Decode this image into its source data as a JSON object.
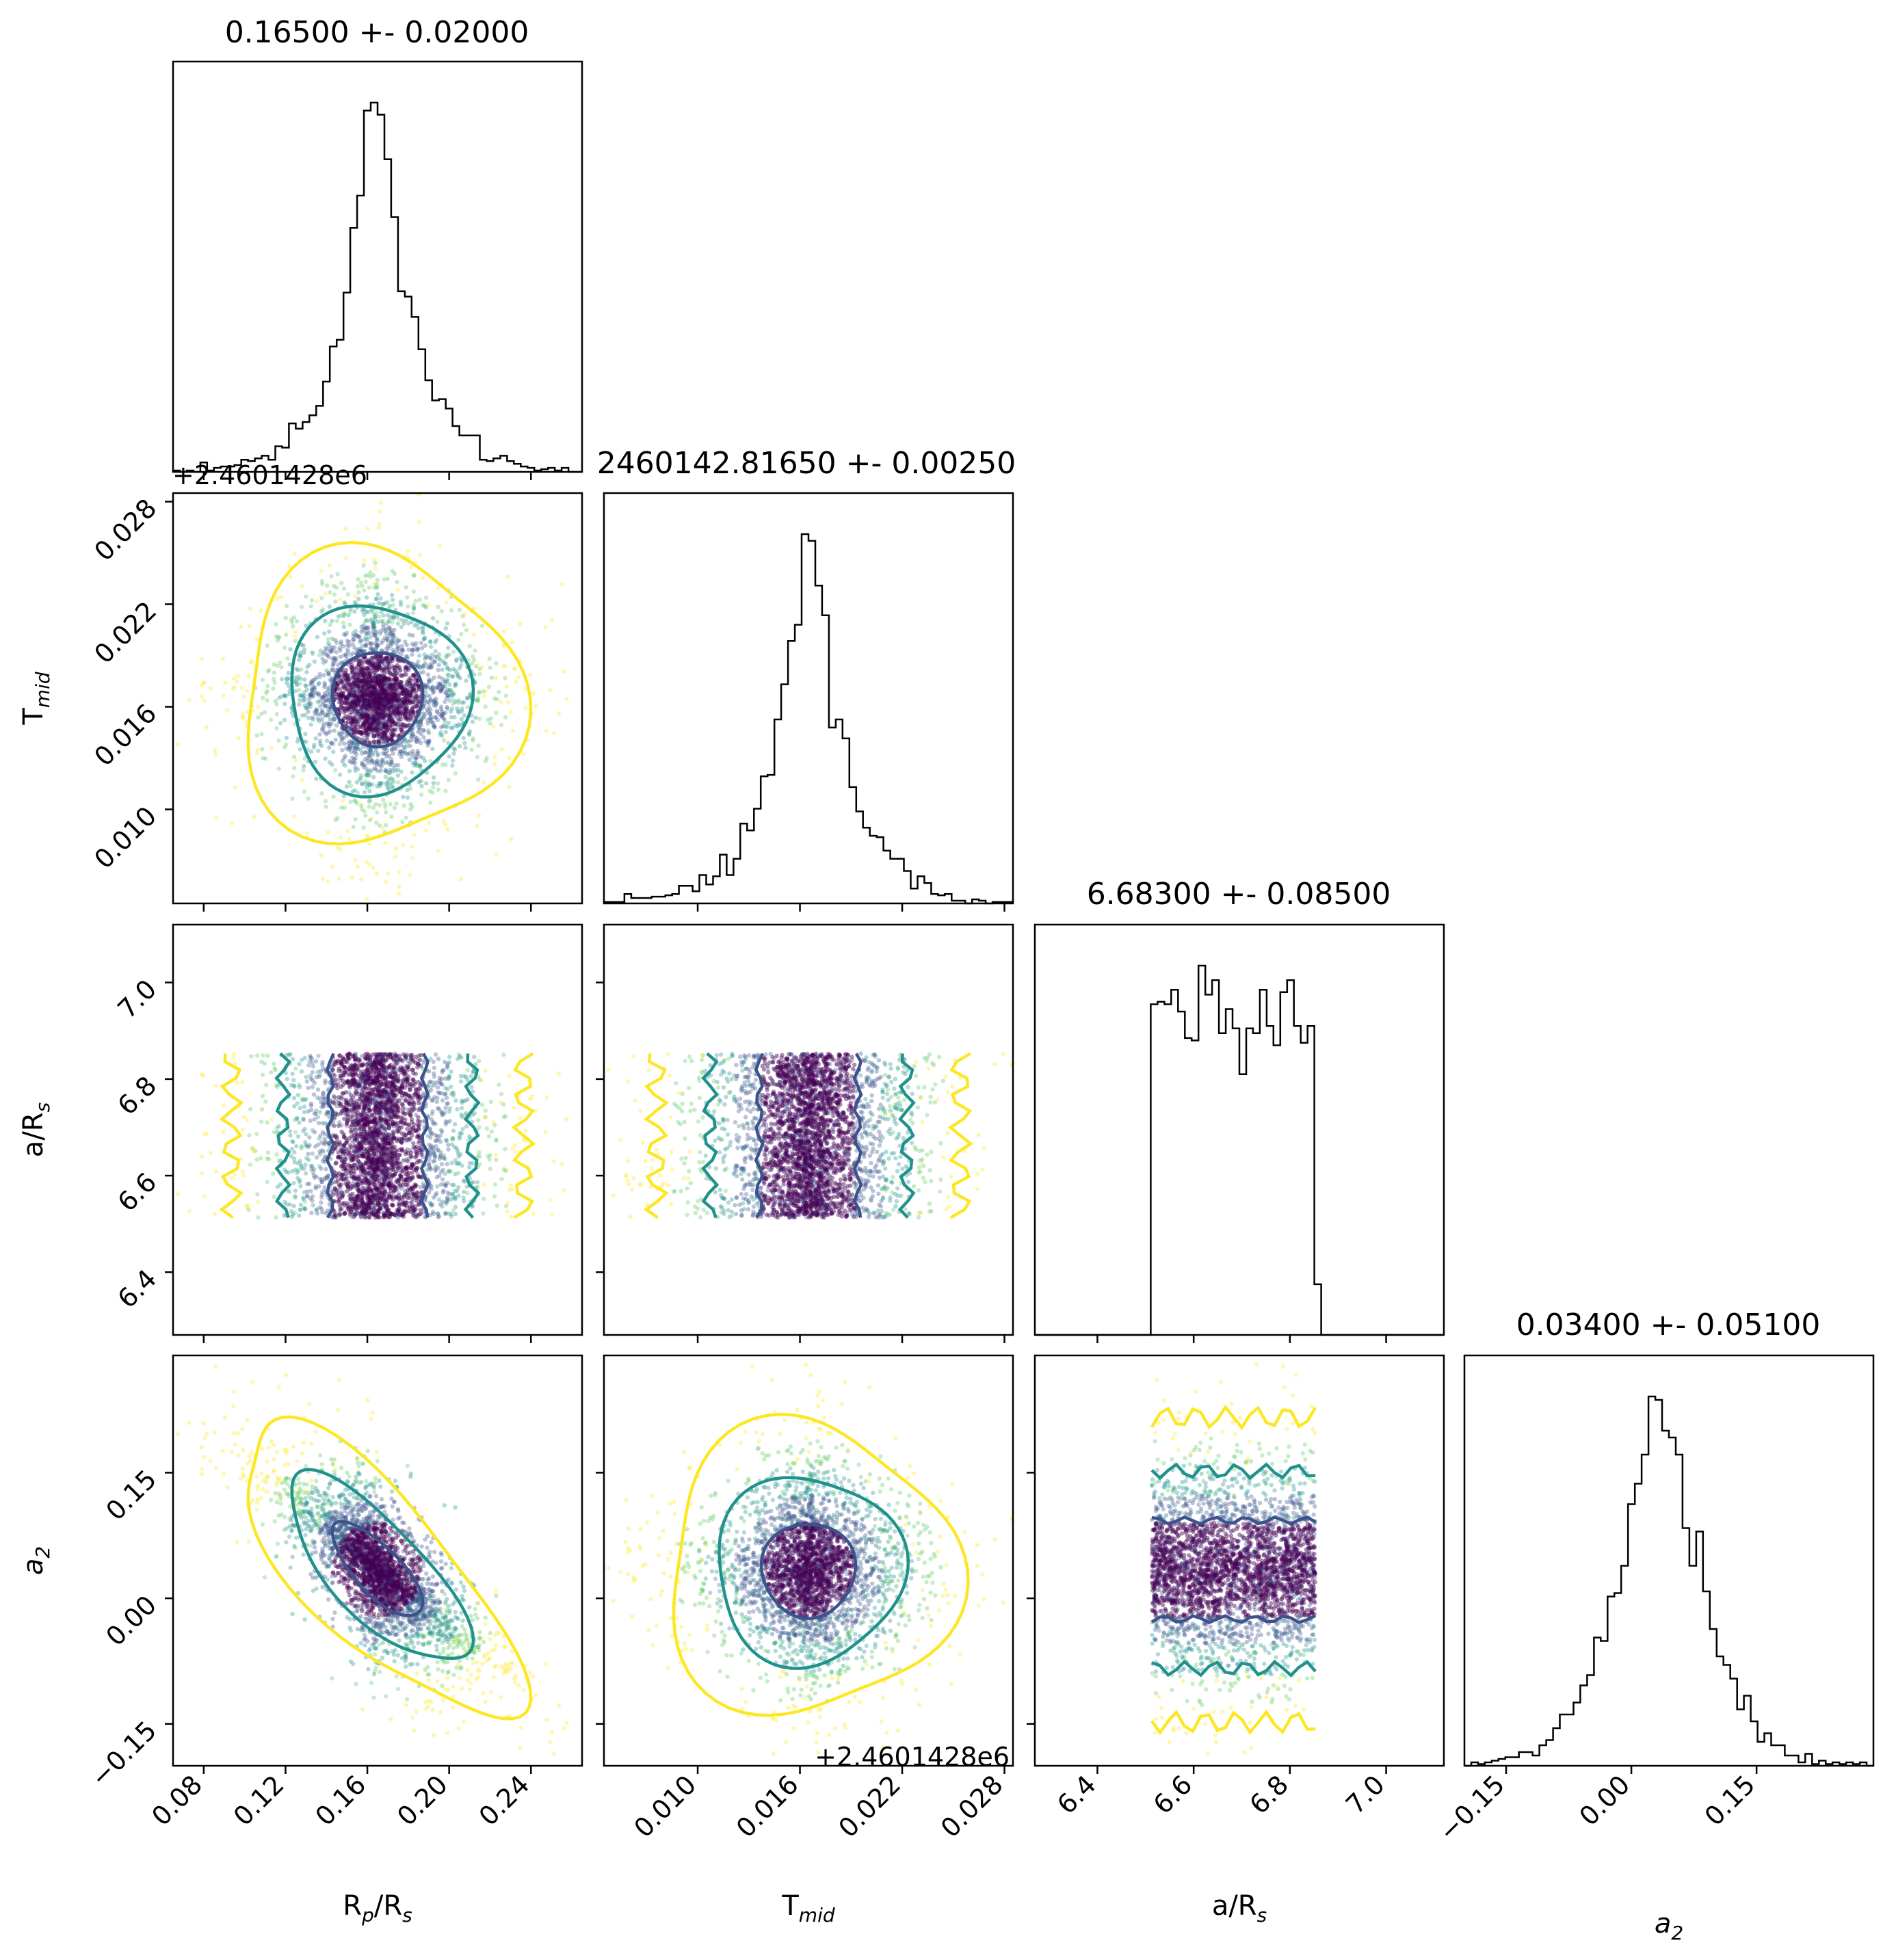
{
  "figure": {
    "titles": [
      "0.16500 +- 0.02000",
      "2460142.81650 +- 0.00250",
      "6.68300 +- 0.08500",
      "0.03400 +- 0.05100"
    ],
    "offset_text": "+2.4601428e6"
  },
  "chart_data": {
    "type": "corner",
    "params": [
      {
        "name": "R_p/R_s",
        "label_main": "R",
        "label_sub1": "p",
        "label_mid": "/R",
        "label_sub2": "s",
        "range": [
          0.065,
          0.265
        ],
        "ticks": [
          0.08,
          0.12,
          0.16,
          0.2,
          0.24
        ],
        "tick_labels": [
          "0.08",
          "0.12",
          "0.16",
          "0.20",
          "0.24"
        ],
        "mean": 0.165,
        "sigma": 0.02
      },
      {
        "name": "T_mid",
        "label_main": "T",
        "label_sub1": "mid",
        "label_mid": "",
        "label_sub2": "",
        "range": [
          0.0045,
          0.0285
        ],
        "ticks": [
          0.01,
          0.016,
          0.022,
          0.028
        ],
        "tick_labels": [
          "0.010",
          "0.016",
          "0.022",
          "0.028"
        ],
        "mean": 0.0165,
        "sigma": 0.0025
      },
      {
        "name": "a/R_s",
        "label_main": "a/R",
        "label_sub1": "s",
        "label_mid": "",
        "label_sub2": "",
        "range": [
          6.27,
          7.12
        ],
        "ticks": [
          6.4,
          6.6,
          6.8,
          7.0
        ],
        "tick_labels": [
          "6.4",
          "6.6",
          "6.8",
          "7.0"
        ],
        "mean": 6.683,
        "sigma": 0.085
      },
      {
        "name": "a_2",
        "label_main": "a",
        "label_sub1": "2",
        "label_mid": "",
        "label_sub2": "",
        "italic": true,
        "range": [
          -0.2,
          0.29
        ],
        "ticks": [
          -0.15,
          0.0,
          0.15
        ],
        "tick_labels": [
          "−0.15",
          "0.00",
          "0.15"
        ],
        "mean": 0.034,
        "sigma": 0.051
      }
    ],
    "contour_colors": [
      "#3b528b",
      "#21918c",
      "#fde725"
    ],
    "point_colors": [
      "#440154",
      "#3b528b",
      "#21918c",
      "#5ec962",
      "#fde725"
    ]
  }
}
